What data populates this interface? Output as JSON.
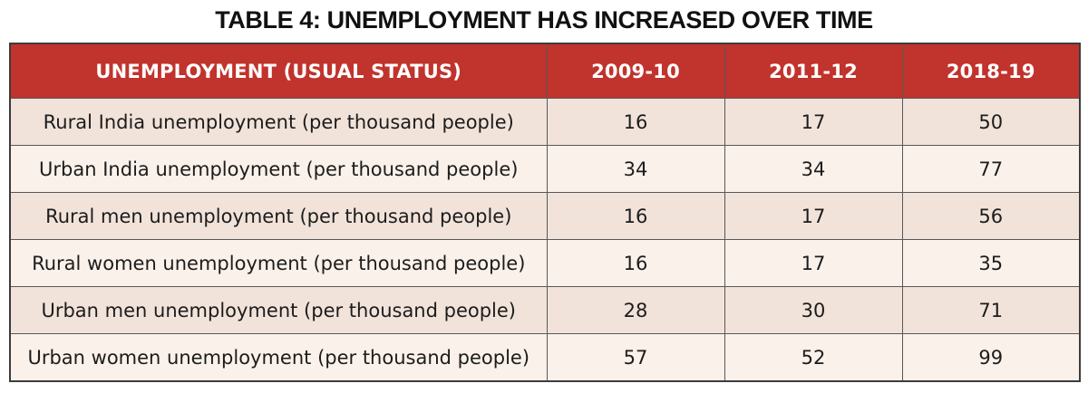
{
  "title": "TABLE 4: UNEMPLOYMENT HAS INCREASED OVER TIME",
  "colors": {
    "title_text": "#111111",
    "header_bg": "#C1332D",
    "header_text": "#FFFFFF",
    "row_odd_bg": "#F2E3DA",
    "row_even_bg": "#FAF1EA",
    "border": "#58585A",
    "outer_border": "#3C3C3C",
    "text": "#1C1C1C"
  },
  "table": {
    "columns": [
      "UNEMPLOYMENT (USUAL STATUS)",
      "2009-10",
      "2011-12",
      "2018-19"
    ],
    "rows": [
      {
        "label": "Rural India unemployment (per thousand people)",
        "values": [
          "16",
          "17",
          "50"
        ]
      },
      {
        "label": "Urban India unemployment (per thousand people)",
        "values": [
          "34",
          "34",
          "77"
        ]
      },
      {
        "label": "Rural men unemployment (per thousand people)",
        "values": [
          "16",
          "17",
          "56"
        ]
      },
      {
        "label": "Rural women unemployment (per thousand people)",
        "values": [
          "16",
          "17",
          "35"
        ]
      },
      {
        "label": "Urban men unemployment (per thousand people)",
        "values": [
          "28",
          "30",
          "71"
        ]
      },
      {
        "label": "Urban women unemployment (per thousand people)",
        "values": [
          "57",
          "52",
          "99"
        ]
      }
    ]
  },
  "chart_data": {
    "type": "table",
    "title": "TABLE 4: UNEMPLOYMENT HAS INCREASED OVER TIME",
    "columns": [
      "UNEMPLOYMENT (USUAL STATUS)",
      "2009-10",
      "2011-12",
      "2018-19"
    ],
    "rows": [
      {
        "label": "Rural India unemployment (per thousand people)",
        "2009-10": 16,
        "2011-12": 17,
        "2018-19": 50
      },
      {
        "label": "Urban India unemployment (per thousand people)",
        "2009-10": 34,
        "2011-12": 34,
        "2018-19": 77
      },
      {
        "label": "Rural men unemployment (per thousand people)",
        "2009-10": 16,
        "2011-12": 17,
        "2018-19": 56
      },
      {
        "label": "Rural women unemployment (per thousand people)",
        "2009-10": 16,
        "2011-12": 17,
        "2018-19": 35
      },
      {
        "label": "Urban men unemployment (per thousand people)",
        "2009-10": 28,
        "2011-12": 30,
        "2018-19": 71
      },
      {
        "label": "Urban women unemployment (per thousand people)",
        "2009-10": 57,
        "2011-12": 52,
        "2018-19": 99
      }
    ],
    "units": "per thousand people"
  }
}
